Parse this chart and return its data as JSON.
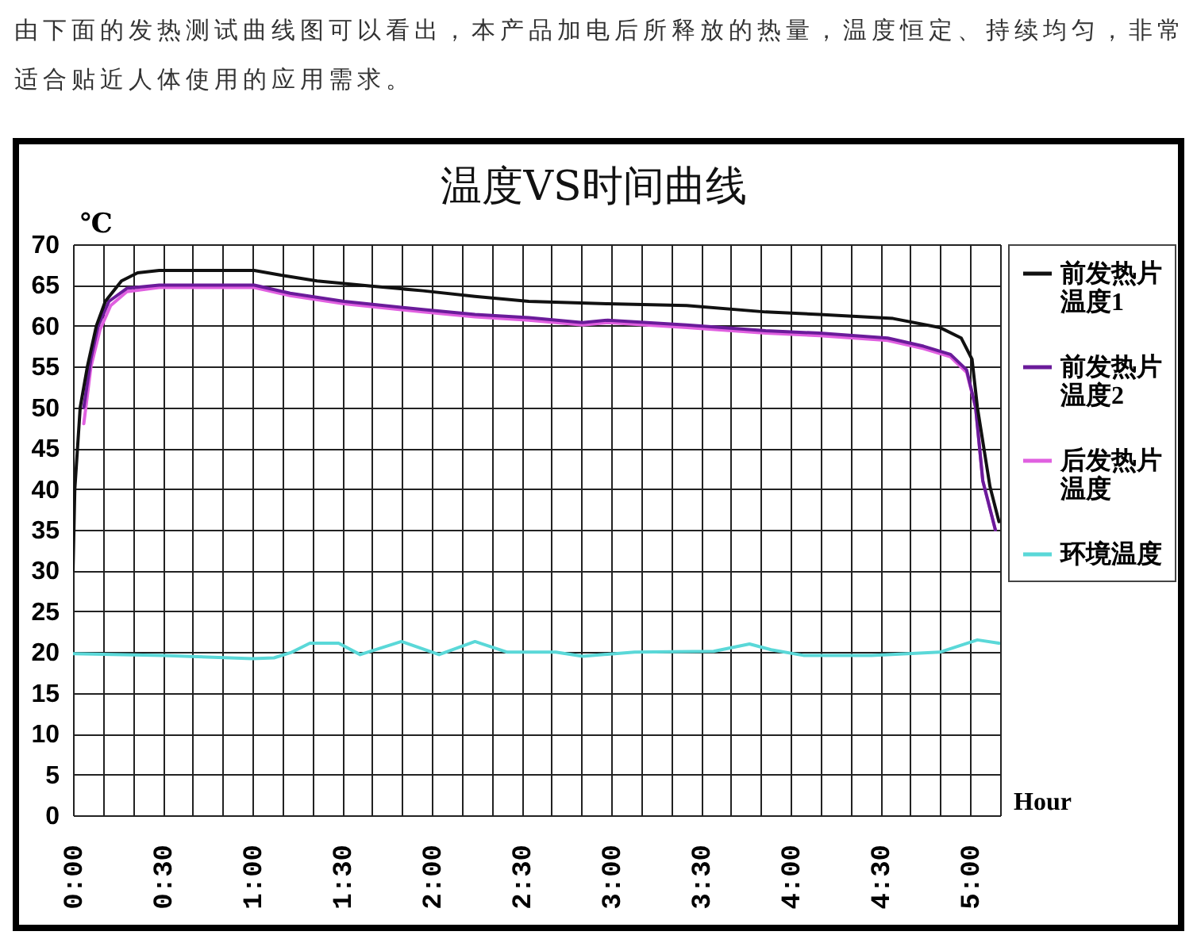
{
  "chart_data": {
    "type": "line",
    "title": "温度VS时间曲线",
    "annotations": [
      "由下面的发热测试曲线图可以看出，本产品加电后所释放的热量，温度恒定、持续均匀，非常适合贴近人体使用的应用需求。"
    ],
    "xlabel": "Hour",
    "ylabel": "℃",
    "xlim": [
      0,
      5.1667
    ],
    "xticks": [
      {
        "value": 0,
        "label": "0:00"
      },
      {
        "value": 0.1667,
        "label": null
      },
      {
        "value": 0.3333,
        "label": null
      },
      {
        "value": 0.5,
        "label": "0:30"
      },
      {
        "value": 0.6667,
        "label": null
      },
      {
        "value": 0.8333,
        "label": null
      },
      {
        "value": 1,
        "label": "1:00"
      },
      {
        "value": 1.1667,
        "label": null
      },
      {
        "value": 1.3333,
        "label": null
      },
      {
        "value": 1.5,
        "label": "1:30"
      },
      {
        "value": 1.6667,
        "label": null
      },
      {
        "value": 1.8333,
        "label": null
      },
      {
        "value": 2,
        "label": "2:00"
      },
      {
        "value": 2.1667,
        "label": null
      },
      {
        "value": 2.3333,
        "label": null
      },
      {
        "value": 2.5,
        "label": "2:30"
      },
      {
        "value": 2.6667,
        "label": null
      },
      {
        "value": 2.8333,
        "label": null
      },
      {
        "value": 3,
        "label": "3:00"
      },
      {
        "value": 3.1667,
        "label": null
      },
      {
        "value": 3.3333,
        "label": null
      },
      {
        "value": 3.5,
        "label": "3:30"
      },
      {
        "value": 3.6667,
        "label": null
      },
      {
        "value": 3.8333,
        "label": null
      },
      {
        "value": 4,
        "label": "4:00"
      },
      {
        "value": 4.1667,
        "label": null
      },
      {
        "value": 4.3333,
        "label": null
      },
      {
        "value": 4.5,
        "label": "4:30"
      },
      {
        "value": 4.6667,
        "label": null
      },
      {
        "value": 4.8333,
        "label": null
      },
      {
        "value": 5,
        "label": "5:00"
      },
      {
        "value": 5.1667,
        "label": null
      }
    ],
    "ylim": [
      0,
      70
    ],
    "yticks": [
      0,
      5,
      10,
      15,
      20,
      25,
      30,
      35,
      40,
      45,
      50,
      55,
      60,
      65,
      70
    ],
    "grid": true,
    "legend": "right",
    "series": [
      {
        "name": "前发热片温度1",
        "color": "#111111",
        "x": [
          0,
          0.01,
          0.04,
          0.08,
          0.13,
          0.18,
          0.27,
          0.36,
          0.48,
          0.75,
          1.01,
          1.16,
          1.36,
          1.65,
          1.95,
          2.24,
          2.54,
          2.98,
          3.42,
          3.86,
          4.16,
          4.57,
          4.83,
          4.95,
          5.01,
          5.04,
          5.11,
          5.16
        ],
        "values": [
          30,
          40,
          50,
          55,
          60,
          63,
          65.5,
          66.5,
          66.8,
          66.8,
          66.8,
          66.2,
          65.5,
          64.9,
          64.3,
          63.6,
          63,
          62.7,
          62.5,
          61.7,
          61.4,
          60.9,
          59.8,
          58.5,
          55.9,
          50,
          40.3,
          36
        ]
      },
      {
        "name": "前发热片温度2",
        "color": "#6a1b9a",
        "x": [
          0.06,
          0.1,
          0.14,
          0.2,
          0.3,
          0.48,
          1.01,
          1.21,
          1.51,
          1.95,
          2.24,
          2.54,
          2.84,
          2.98,
          3.42,
          3.86,
          4.16,
          4.54,
          4.74,
          4.89,
          4.98,
          5.03,
          5.07,
          5.14
        ],
        "values": [
          50,
          56,
          60,
          63,
          64.6,
          65,
          65,
          64,
          63,
          62,
          61.4,
          61,
          60.4,
          60.7,
          60.1,
          59.4,
          59.1,
          58.5,
          57.5,
          56.5,
          54.6,
          50,
          41,
          35
        ]
      },
      {
        "name": "后发热片温度",
        "color": "#e060e0",
        "x": [
          0.06,
          0.1,
          0.15,
          0.21,
          0.3,
          0.48,
          1.01,
          1.21,
          1.51,
          1.95,
          2.24,
          2.54,
          2.84,
          2.98,
          3.42,
          3.86,
          4.16,
          4.54,
          4.74,
          4.89,
          4.98,
          5.03,
          5.07,
          5.14
        ],
        "values": [
          48,
          55,
          59.5,
          62.5,
          64.2,
          64.7,
          64.7,
          63.7,
          62.7,
          61.7,
          61.1,
          60.7,
          60.1,
          60.4,
          59.8,
          59.1,
          58.8,
          58.2,
          57.2,
          56.2,
          54.3,
          50,
          41,
          35
        ]
      },
      {
        "name": "环境温度",
        "color": "#5ad8d8",
        "x": [
          0,
          0.5,
          1,
          1.12,
          1.22,
          1.32,
          1.48,
          1.6,
          1.83,
          2.04,
          2.24,
          2.42,
          2.69,
          2.84,
          3.13,
          3.57,
          3.77,
          3.89,
          4.07,
          4.45,
          4.83,
          5.04,
          5.16
        ],
        "values": [
          19.8,
          19.6,
          19.2,
          19.3,
          20,
          21.1,
          21.1,
          19.7,
          21.3,
          19.7,
          21.3,
          20,
          20,
          19.5,
          20,
          20.1,
          21,
          20.3,
          19.6,
          19.6,
          20,
          21.5,
          21.1
        ]
      }
    ]
  }
}
